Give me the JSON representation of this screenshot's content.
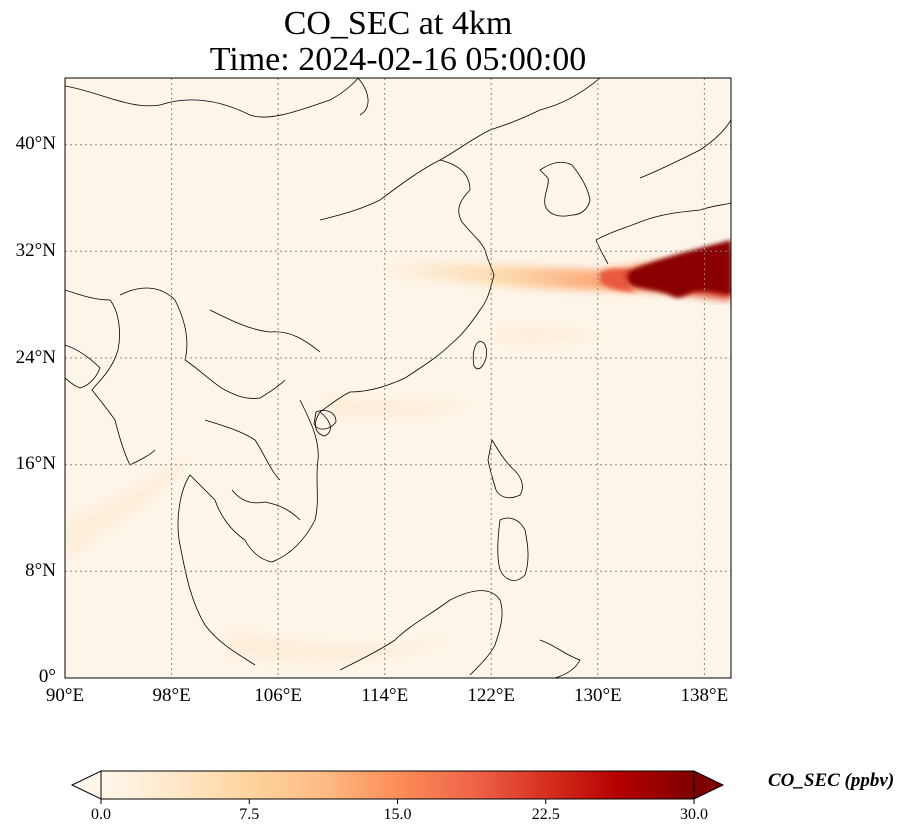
{
  "title_line1": "CO_SEC at 4km",
  "title_line2": "Time: 2024-02-16 05:00:00",
  "colorbar": {
    "label": "CO_SEC (ppbv)",
    "ticks": [
      "0.0",
      "7.5",
      "15.0",
      "22.5",
      "30.0"
    ],
    "min": 0,
    "max": 30,
    "extend": "both",
    "colormap": "OrRd",
    "colors": [
      "#fff7ec",
      "#fee8c8",
      "#fdd49e",
      "#fdbb84",
      "#fc8d59",
      "#ef6548",
      "#d7301f",
      "#b30000",
      "#7f0000"
    ]
  },
  "map": {
    "lon_range": [
      90,
      140
    ],
    "lat_range": [
      0,
      45
    ],
    "lon_ticks": [
      "90°E",
      "98°E",
      "106°E",
      "114°E",
      "122°E",
      "130°E",
      "138°E"
    ],
    "lat_ticks": [
      "0°",
      "8°N",
      "16°N",
      "24°N",
      "32°N",
      "40°N"
    ],
    "gridlines": "dotted",
    "colors": {
      "background": "#fdf5e9",
      "coast": "#000000",
      "grid": "#888888"
    }
  },
  "chart_data": {
    "type": "heatmap",
    "title": "CO_SEC at 4km\nTime: 2024-02-16 05:00:00",
    "variable": "CO_SEC",
    "units": "ppbv",
    "vmin": 0,
    "vmax": 30,
    "plume": [
      {
        "lon": 137,
        "lat": 30.0,
        "value": 30
      },
      {
        "lon": 134,
        "lat": 29.5,
        "value": 26
      },
      {
        "lon": 131,
        "lat": 29.5,
        "value": 16
      },
      {
        "lon": 127,
        "lat": 29.6,
        "value": 10
      },
      {
        "lon": 123,
        "lat": 29.8,
        "value": 6
      },
      {
        "lon": 118,
        "lat": 30.0,
        "value": 3
      }
    ]
  }
}
